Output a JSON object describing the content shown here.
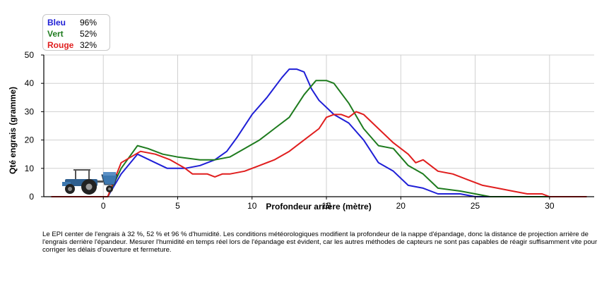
{
  "chart_data": {
    "type": "line",
    "title": "",
    "xlabel": "Profondeur arrière (mètre)",
    "ylabel": "Qté engrais (gramme)",
    "xlim": [
      -4,
      33
    ],
    "ylim": [
      0,
      50
    ],
    "xticks": [
      0,
      5,
      10,
      15,
      20,
      25,
      30
    ],
    "yticks": [
      0,
      10,
      20,
      30,
      40,
      50
    ],
    "grid": true,
    "legend_position": "top-left",
    "series": [
      {
        "name": "Bleu",
        "legend_value": "96%",
        "color": "#1f1fd6",
        "x": [
          -3.5,
          0.3,
          1.2,
          2.3,
          3.5,
          4.3,
          5.5,
          6.5,
          7.5,
          8.3,
          9,
          10,
          11,
          12,
          12.5,
          13,
          13.5,
          14,
          14.5,
          15.5,
          16.5,
          17.5,
          18.5,
          19.5,
          20.5,
          21.5,
          22.5,
          24,
          25,
          26.5,
          28,
          30,
          32,
          32.5
        ],
        "y": [
          0,
          0,
          8,
          15,
          12,
          10,
          10,
          11,
          13,
          16,
          21,
          29,
          35,
          42,
          45,
          45,
          44,
          38,
          34,
          29,
          26,
          20,
          12,
          9,
          4,
          3,
          1,
          1,
          0,
          0,
          0,
          0,
          0,
          0
        ]
      },
      {
        "name": "Vert",
        "legend_value": "52%",
        "color": "#1e7b1e",
        "x": [
          -3.5,
          0.3,
          1.2,
          2.3,
          3,
          4,
          5,
          6.5,
          7.5,
          8.5,
          9.5,
          10.5,
          11.5,
          12.5,
          13.5,
          14.3,
          15,
          15.5,
          16.5,
          17.5,
          18.5,
          19.5,
          20.5,
          21.5,
          22.5,
          24,
          25,
          26,
          28,
          30,
          32,
          32.5
        ],
        "y": [
          0,
          0,
          10,
          18,
          17,
          15,
          14,
          13,
          13,
          14,
          17,
          20,
          24,
          28,
          36,
          41,
          41,
          40,
          33,
          24,
          18,
          17,
          11,
          8,
          3,
          2,
          1,
          0,
          0,
          0,
          0,
          0
        ]
      },
      {
        "name": "Rouge",
        "legend_value": "32%",
        "color": "#e01e1e",
        "x": [
          -3.5,
          0.3,
          1.2,
          2.5,
          3.5,
          4.5,
          5.5,
          6,
          7,
          7.5,
          8,
          8.5,
          9.5,
          10.5,
          11.5,
          12.5,
          13.5,
          14.5,
          15,
          15.5,
          16,
          16.5,
          17,
          17.5,
          18.5,
          19.5,
          20.5,
          21,
          21.5,
          22.5,
          23.5,
          24.5,
          25.5,
          26.5,
          27.5,
          28.5,
          29.5,
          30,
          31,
          32,
          32.5
        ],
        "y": [
          0,
          0,
          12,
          16,
          15,
          13,
          10,
          8,
          8,
          7,
          8,
          8,
          9,
          11,
          13,
          16,
          20,
          24,
          28,
          29,
          29,
          28,
          30,
          29,
          24,
          19,
          15,
          12,
          13,
          9,
          8,
          6,
          4,
          3,
          2,
          1,
          1,
          0,
          0,
          0,
          0
        ]
      }
    ]
  },
  "caption": "Le EPI center de l'engrais à 32 %, 52 % et 96 % d'humidité. Les conditions météorologiques modifient la profondeur de la nappe d'épandage, donc la distance de projection arrière de l'engrais derrière l'épandeur. Mesurer l'humidité en temps réel lors de l'épandage est évident, car les autres méthodes de capteurs ne sont pas capables de réagir suffisamment vite pour corriger les délais d'ouverture et fermeture.",
  "icons": {
    "tractor": "tractor-icon"
  }
}
